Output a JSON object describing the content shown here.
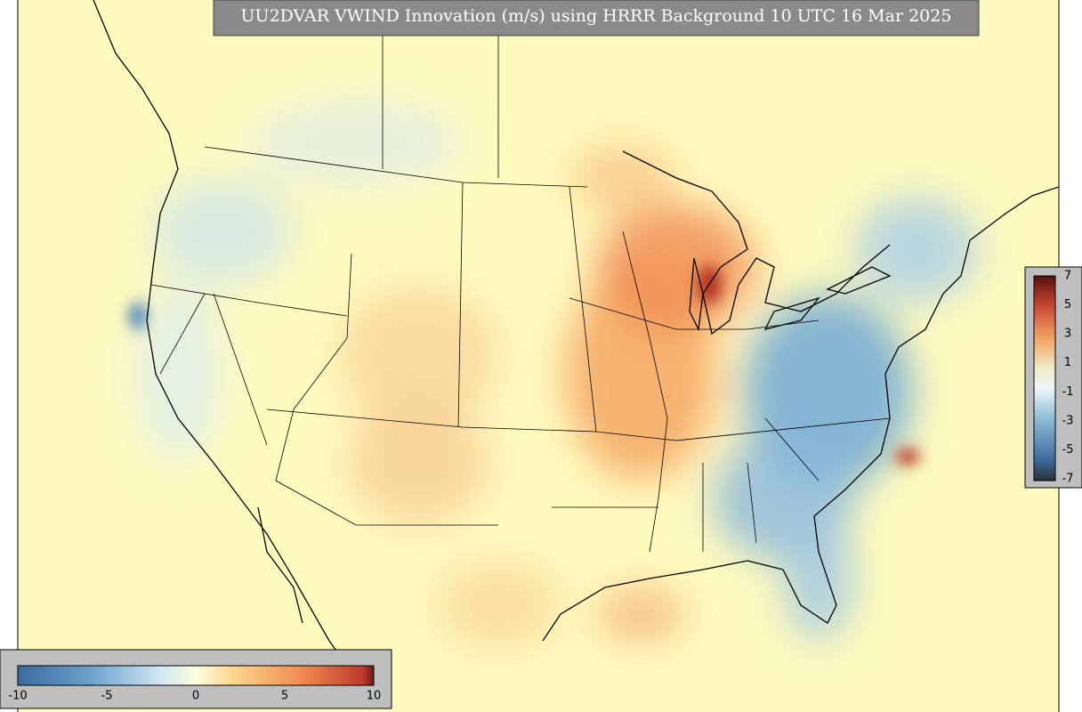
{
  "header": {
    "title": "UU2DVAR VWIND Innovation (m/s) using HRRR Background 10 UTC 16 Mar 2025"
  },
  "colorbar_bottom": {
    "ticks": [
      -10,
      -5,
      0,
      5,
      10
    ]
  },
  "colorbar_right": {
    "ticks": [
      7,
      5,
      3,
      1,
      -1,
      -3,
      -5,
      -7
    ]
  }
}
